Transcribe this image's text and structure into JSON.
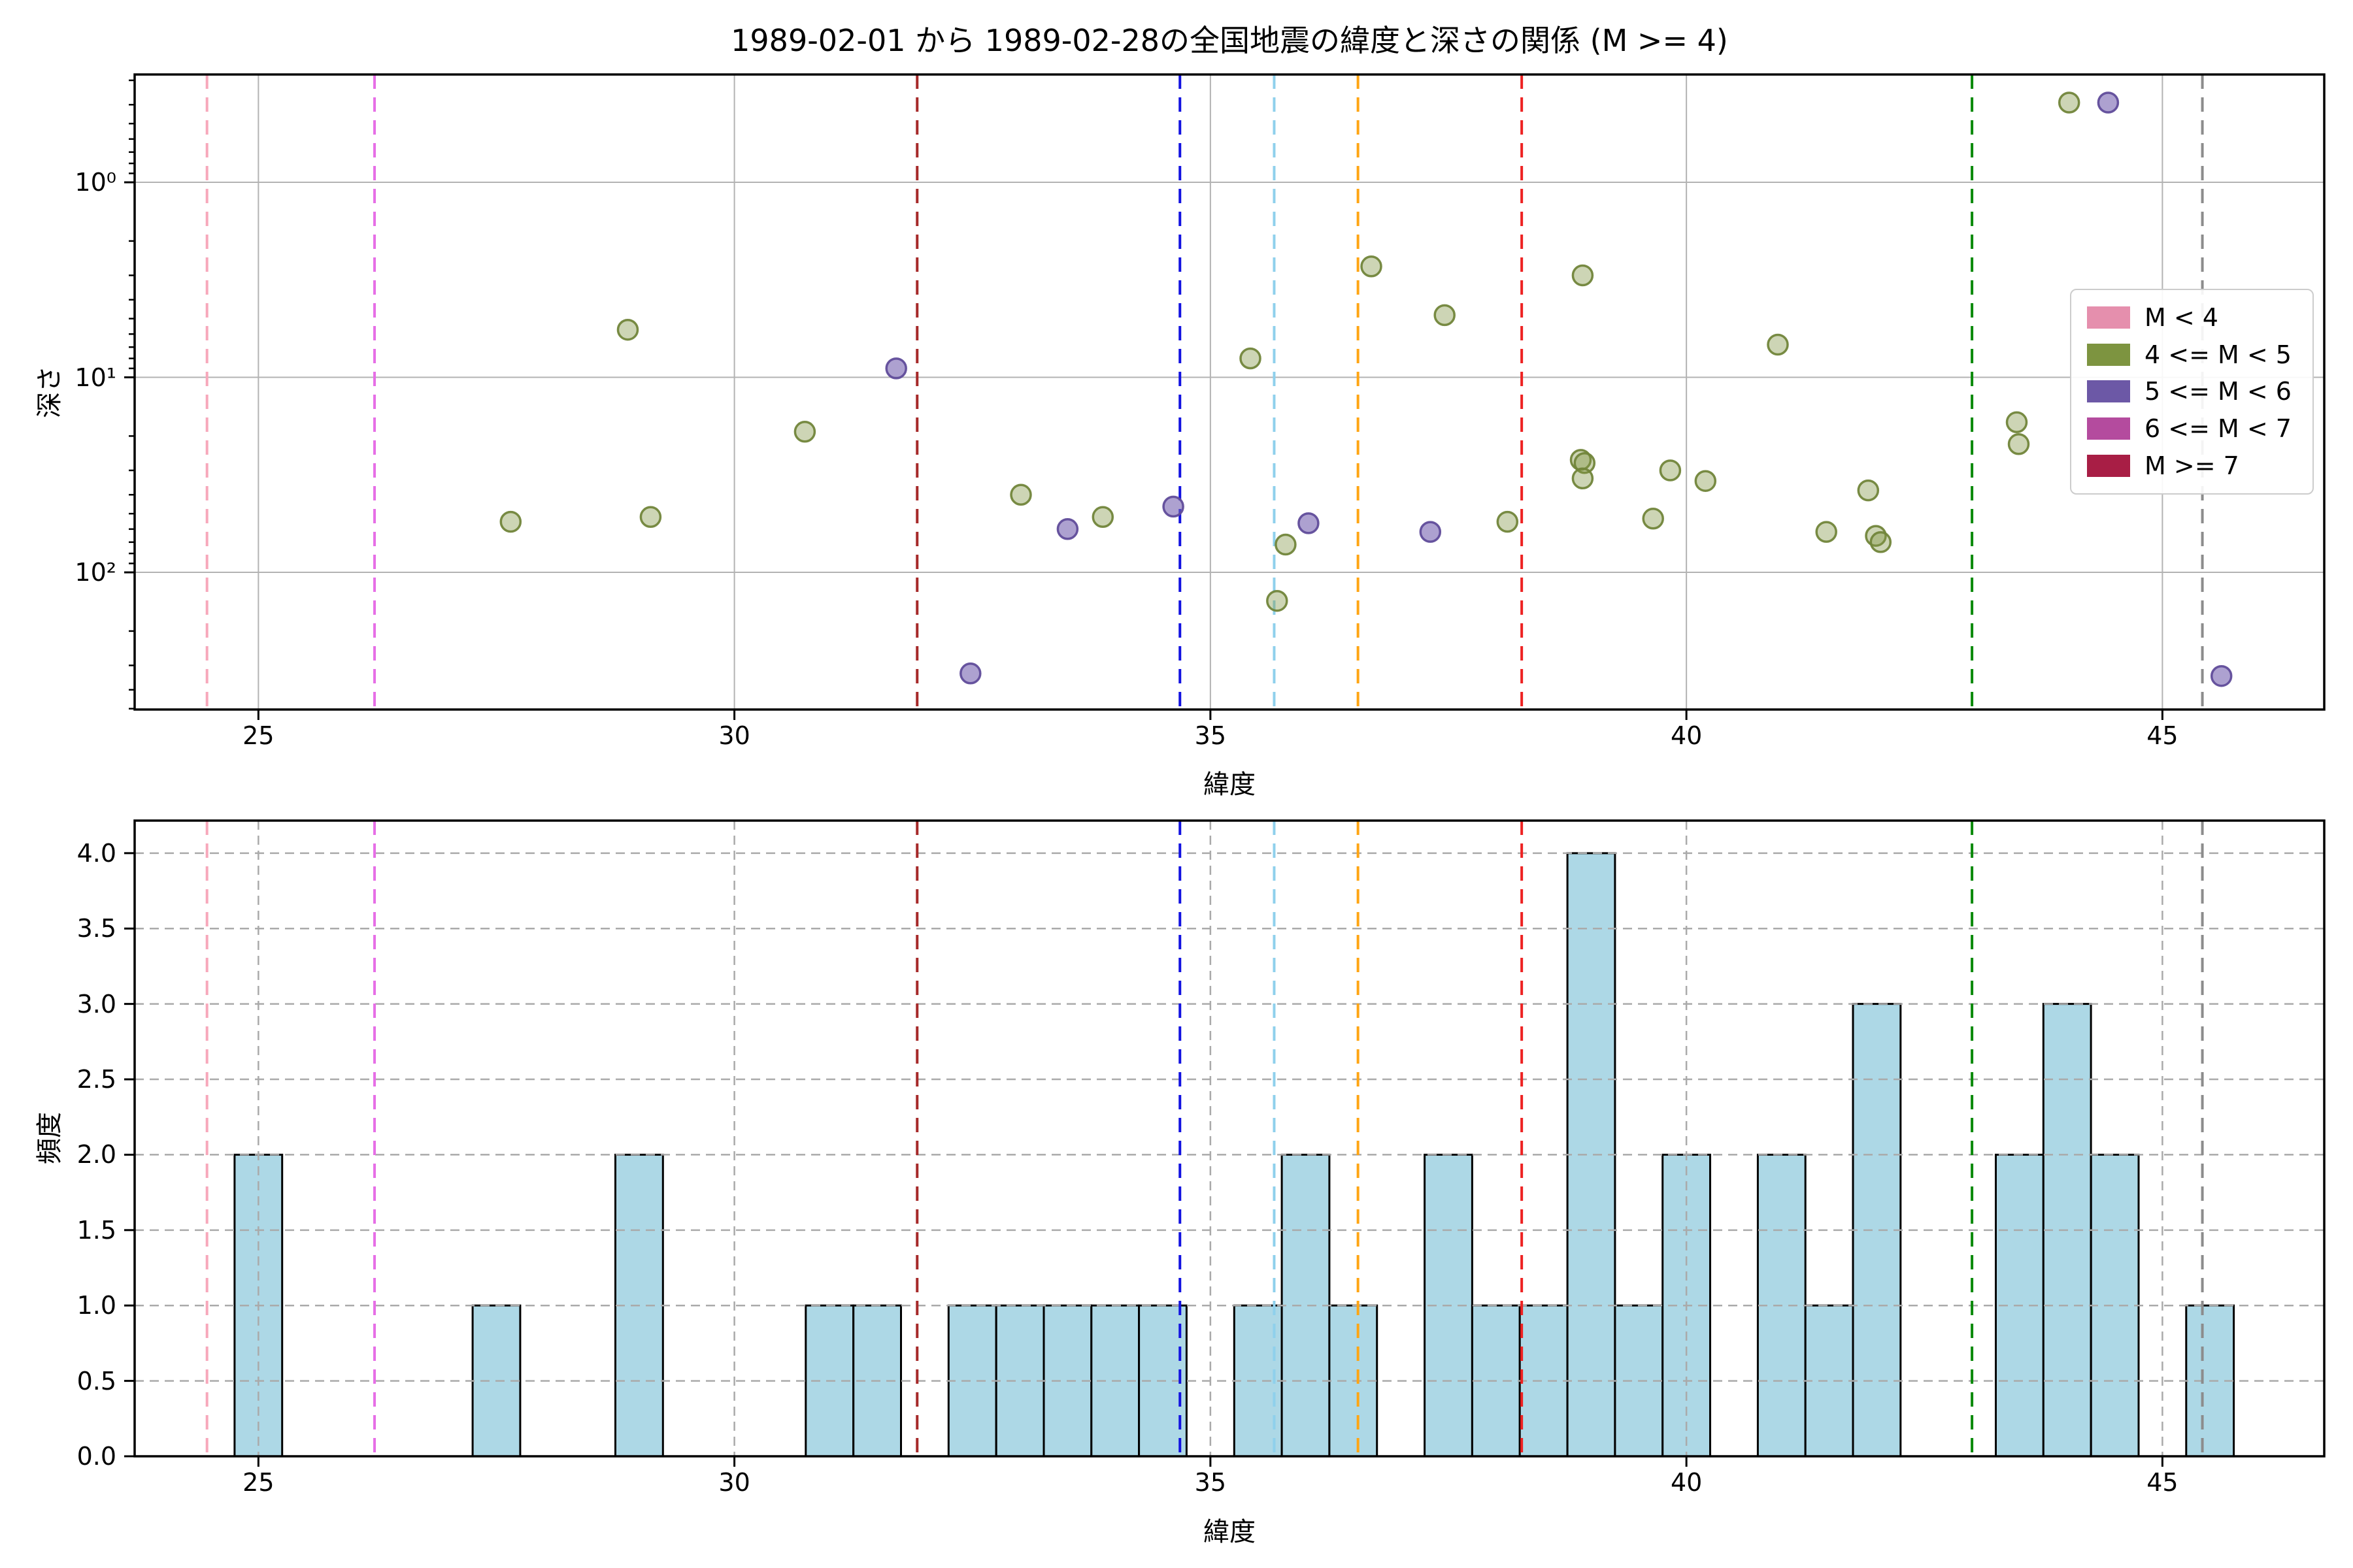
{
  "title": "1989-02-01 から 1989-02-28の全国地震の緯度と深さの関係 (M >= 4)",
  "chart_data": [
    {
      "type": "scatter",
      "title": "",
      "xlabel": "緯度",
      "ylabel": "深さ",
      "xlim": [
        23.7,
        46.7
      ],
      "ylim": [
        0.28,
        505
      ],
      "y_scale": "log-inverted",
      "xticks": [
        25,
        30,
        35,
        40,
        45
      ],
      "ytick_values": [
        1,
        10,
        100
      ],
      "ytick_labels": [
        "10⁰",
        "10¹",
        "10²"
      ],
      "grid": "solid",
      "grid_color": "#b3b3b3",
      "series": [
        {
          "name": "4 <= M < 5",
          "fill": "rgba(130,150,70,0.40)",
          "edge": "rgba(113,133,58,0.95)",
          "points": [
            [
              27.65,
              55
            ],
            [
              28.88,
              5.7
            ],
            [
              29.12,
              52
            ],
            [
              30.74,
              19
            ],
            [
              33.01,
              40
            ],
            [
              33.87,
              52
            ],
            [
              35.42,
              8
            ],
            [
              35.7,
              140
            ],
            [
              35.79,
              72
            ],
            [
              36.69,
              2.7
            ],
            [
              37.46,
              4.8
            ],
            [
              38.12,
              55
            ],
            [
              38.91,
              3.0
            ],
            [
              38.89,
              26.5
            ],
            [
              38.93,
              27.5
            ],
            [
              38.91,
              33
            ],
            [
              39.65,
              53
            ],
            [
              39.83,
              30
            ],
            [
              40.2,
              34
            ],
            [
              40.96,
              6.8
            ],
            [
              41.47,
              62
            ],
            [
              41.91,
              38
            ],
            [
              41.99,
              65
            ],
            [
              42.04,
              70
            ],
            [
              43.47,
              17
            ],
            [
              43.49,
              22
            ],
            [
              44.02,
              0.39
            ]
          ]
        },
        {
          "name": "5 <= M < 6",
          "fill": "rgba(118,98,176,0.60)",
          "edge": "rgba(96,76,154,0.95)",
          "points": [
            [
              31.7,
              9
            ],
            [
              32.48,
              330
            ],
            [
              33.5,
              60
            ],
            [
              34.61,
              46
            ],
            [
              36.03,
              56
            ],
            [
              37.31,
              62
            ],
            [
              44.43,
              0.39
            ],
            [
              45.62,
              340
            ]
          ]
        }
      ],
      "event_lines": [
        {
          "lat": 24.46,
          "color": "#f7a8bb"
        },
        {
          "lat": 26.22,
          "color": "#e66fe6"
        },
        {
          "lat": 31.92,
          "color": "#a62a2a"
        },
        {
          "lat": 34.68,
          "color": "#1212e0"
        },
        {
          "lat": 35.67,
          "color": "#8fd0ec"
        },
        {
          "lat": 36.55,
          "color": "#ffa513"
        },
        {
          "lat": 38.27,
          "color": "#ee2222"
        },
        {
          "lat": 43.0,
          "color": "#0b8a0b"
        },
        {
          "lat": 45.42,
          "color": "#8c8c8c"
        }
      ],
      "legend": {
        "position": "right",
        "items": [
          {
            "label": "M < 4",
            "color": "#e58fad"
          },
          {
            "label": "4 <= M < 5",
            "color": "#7d9440"
          },
          {
            "label": "5 <= M < 6",
            "color": "#6c58a6"
          },
          {
            "label": "6 <= M < 7",
            "color": "#b44b9e"
          },
          {
            "label": "M >= 7",
            "color": "#a81e45"
          }
        ]
      }
    },
    {
      "type": "bar",
      "title": "",
      "xlabel": "緯度",
      "ylabel": "頻度",
      "xlim": [
        23.7,
        46.7
      ],
      "ylim": [
        0,
        4.216
      ],
      "xticks": [
        25,
        30,
        35,
        40,
        45
      ],
      "ytick_values": [
        0,
        0.5,
        1.0,
        1.5,
        2.0,
        2.5,
        3.0,
        3.5,
        4.0
      ],
      "ytick_labels": [
        "0.0",
        "0.5",
        "1.0",
        "1.5",
        "2.0",
        "2.5",
        "3.0",
        "3.5",
        "4.0"
      ],
      "grid": "dashed",
      "grid_color": "#aaaaaa",
      "bar_color": "#add8e6",
      "bar_edge": "#000000",
      "bin_width": 0.5,
      "bins": [
        {
          "start": 24.75,
          "count": 2
        },
        {
          "start": 27.25,
          "count": 1
        },
        {
          "start": 28.75,
          "count": 2
        },
        {
          "start": 30.75,
          "count": 1
        },
        {
          "start": 31.25,
          "count": 1
        },
        {
          "start": 32.25,
          "count": 1
        },
        {
          "start": 32.75,
          "count": 1
        },
        {
          "start": 33.25,
          "count": 1
        },
        {
          "start": 33.75,
          "count": 1
        },
        {
          "start": 34.25,
          "count": 1
        },
        {
          "start": 35.25,
          "count": 1
        },
        {
          "start": 35.75,
          "count": 2
        },
        {
          "start": 36.25,
          "count": 1
        },
        {
          "start": 37.25,
          "count": 2
        },
        {
          "start": 37.75,
          "count": 1
        },
        {
          "start": 38.25,
          "count": 1
        },
        {
          "start": 38.75,
          "count": 4
        },
        {
          "start": 39.25,
          "count": 1
        },
        {
          "start": 39.75,
          "count": 2
        },
        {
          "start": 40.75,
          "count": 2
        },
        {
          "start": 41.25,
          "count": 1
        },
        {
          "start": 41.75,
          "count": 3
        },
        {
          "start": 43.25,
          "count": 2
        },
        {
          "start": 43.75,
          "count": 3
        },
        {
          "start": 44.25,
          "count": 2
        },
        {
          "start": 45.25,
          "count": 1
        }
      ],
      "event_lines": [
        {
          "lat": 24.46,
          "color": "#f7a8bb"
        },
        {
          "lat": 26.22,
          "color": "#e66fe6"
        },
        {
          "lat": 31.92,
          "color": "#a62a2a"
        },
        {
          "lat": 34.68,
          "color": "#1212e0"
        },
        {
          "lat": 35.67,
          "color": "#8fd0ec"
        },
        {
          "lat": 36.55,
          "color": "#ffa513"
        },
        {
          "lat": 38.27,
          "color": "#ee2222"
        },
        {
          "lat": 43.0,
          "color": "#0b8a0b"
        },
        {
          "lat": 45.42,
          "color": "#8c8c8c"
        }
      ]
    }
  ]
}
